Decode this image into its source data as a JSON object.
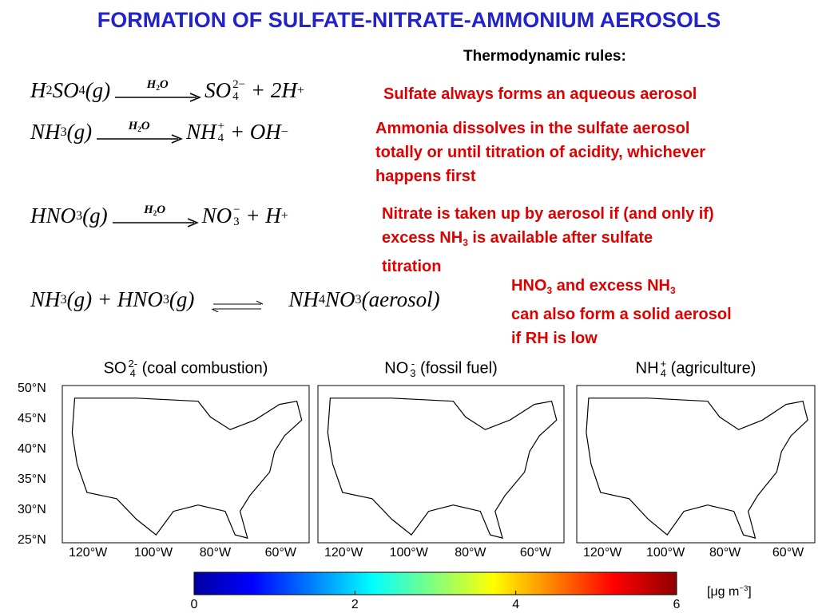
{
  "title": "FORMATION OF SULFATE-NITRATE-AMMONIUM AEROSOLS",
  "subtitle": "Thermodynamic rules:",
  "reactions": [
    {
      "left": [
        "H",
        {
          "sub": "2"
        },
        "SO",
        {
          "sub": "4"
        },
        "(g)"
      ],
      "arrow_label": [
        "H",
        {
          "sub": "2"
        },
        "O"
      ],
      "right": [
        "SO",
        {
          "sub": "4",
          "sup": "2−"
        },
        " + 2H",
        {
          "sup": "+"
        }
      ],
      "note": [
        [
          "Sulfate always forms an aqueous aerosol"
        ]
      ]
    },
    {
      "left": [
        "NH",
        {
          "sub": "3"
        },
        "(g)"
      ],
      "arrow_label": [
        "H",
        {
          "sub": "2"
        },
        "O"
      ],
      "right": [
        "NH",
        {
          "sub": "4",
          "sup": "+"
        },
        " + OH",
        {
          "sup": "−"
        }
      ],
      "note": [
        [
          "Ammonia dissolves in the sulfate aerosol"
        ],
        [
          "totally or until titration of acidity, whichever"
        ],
        [
          "happens first"
        ]
      ]
    },
    {
      "left": [
        "HNO",
        {
          "sub": "3"
        },
        "(g)"
      ],
      "arrow_label": [
        "H",
        {
          "sub": "2"
        },
        "O"
      ],
      "right": [
        "NO",
        {
          "sub": "3",
          "sup": "−"
        },
        " + H",
        {
          "sup": "+"
        }
      ],
      "note": [
        [
          "Nitrate is taken up by aerosol if (and only if)"
        ],
        [
          "excess NH",
          {
            "sub": "3"
          },
          " is available after sulfate"
        ],
        [
          "titration"
        ]
      ]
    },
    {
      "left": [
        "NH",
        {
          "sub": "3"
        },
        "(g) + HNO",
        {
          "sub": "3"
        },
        "(g)"
      ],
      "right": [
        "NH",
        {
          "sub": "4"
        },
        "NO",
        {
          "sub": "3"
        },
        "(aerosol)"
      ],
      "note": [
        [
          "HNO",
          {
            "sub": "3"
          },
          " and excess NH",
          {
            "sub": "3"
          }
        ],
        [
          "can also form a solid aerosol"
        ],
        [
          "if RH is low"
        ]
      ]
    }
  ],
  "maps": {
    "lat_labels": [
      "50°N",
      "45°N",
      "40°N",
      "35°N",
      "30°N",
      "25°N"
    ],
    "lon_labels": [
      "120°W",
      "100°W",
      "80°W",
      "60°W"
    ],
    "panels": [
      {
        "title": [
          "SO",
          {
            "sub": "4",
            "sup": "2-"
          },
          " (coal combustion)"
        ]
      },
      {
        "title": [
          "NO",
          {
            "sub": "3",
            "sup": "-"
          },
          " (fossil fuel)"
        ]
      },
      {
        "title": [
          "NH",
          {
            "sub": "4",
            "sup": "+"
          },
          " (agriculture)"
        ]
      }
    ]
  },
  "colorbar": {
    "lim": [
      0,
      6
    ],
    "ticks": [
      0,
      2,
      4,
      6
    ],
    "unit": [
      "[μg m",
      {
        "sup": "−3"
      },
      "]"
    ]
  }
}
